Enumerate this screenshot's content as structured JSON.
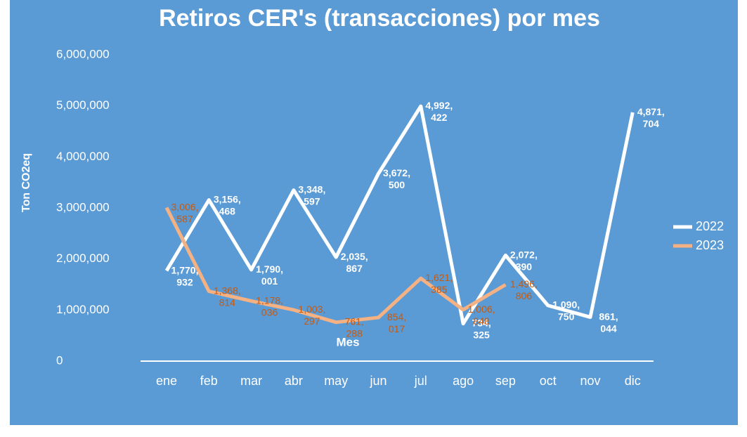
{
  "chart_data": {
    "type": "line",
    "title": "Retiros CER's (transacciones) por mes",
    "x_label": "Mes",
    "y_label": "Ton CO2eq",
    "categories": [
      "ene",
      "feb",
      "mar",
      "abr",
      "may",
      "jun",
      "jul",
      "ago",
      "sep",
      "oct",
      "nov",
      "dic"
    ],
    "series": [
      {
        "name": "2022",
        "color": "#ffffff",
        "values": [
          1770932,
          3156468,
          1790001,
          3348597,
          2035867,
          3672500,
          4992422,
          734325,
          2072390,
          1090750,
          861044,
          4871704
        ],
        "value_labels": [
          "1,770,932",
          "3,156,468",
          "1,790,001",
          "3,348,597",
          "2,035,867",
          "3,672,500",
          "4,992,422",
          "734,325",
          "2,072,390",
          "1,090,750",
          "861,044",
          "4,871,704"
        ]
      },
      {
        "name": "2023",
        "color": "#f4b183",
        "values": [
          3006587,
          1368814,
          1178036,
          1003297,
          761288,
          854017,
          1621385,
          1006848,
          1496806,
          null,
          null,
          null
        ],
        "value_labels": [
          "3,006,587",
          "1,368,814",
          "1,178,036",
          "1,003,297",
          "761,288",
          "854,017",
          "1,621,385",
          "1,006,848",
          "1,496,806",
          null,
          null,
          null
        ]
      }
    ],
    "ylim": [
      0,
      6000000
    ],
    "yticks": [
      0,
      {
        "value": 1000000,
        "label": "1,000,000"
      },
      {
        "value": 2000000,
        "label": "2,000,000"
      },
      {
        "value": 3000000,
        "label": "3,000,000"
      },
      {
        "value": 4000000,
        "label": "4,000,000"
      },
      {
        "value": 5000000,
        "label": "5,000,000"
      },
      {
        "value": 6000000,
        "label": "6,000,000"
      }
    ],
    "grid": false,
    "legend": "right"
  }
}
